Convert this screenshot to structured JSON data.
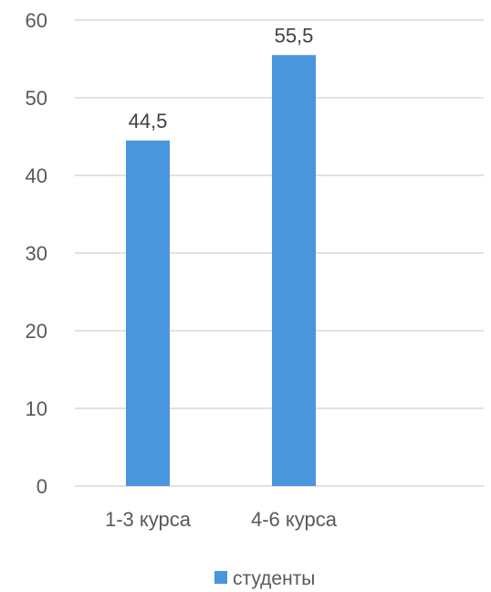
{
  "chart_data": {
    "type": "bar",
    "categories": [
      "1-3 курса",
      "4-6 курса"
    ],
    "series": [
      {
        "name": "студенты",
        "values": [
          44.5,
          55.5
        ],
        "color": "#4a96dd"
      }
    ],
    "data_labels": [
      "44,5",
      "55,5"
    ],
    "yticks": [
      0,
      10,
      20,
      30,
      40,
      50,
      60
    ],
    "ylim": [
      0,
      60
    ],
    "grid": true,
    "legend_position": "bottom",
    "title": "",
    "xlabel": "",
    "ylabel": ""
  }
}
